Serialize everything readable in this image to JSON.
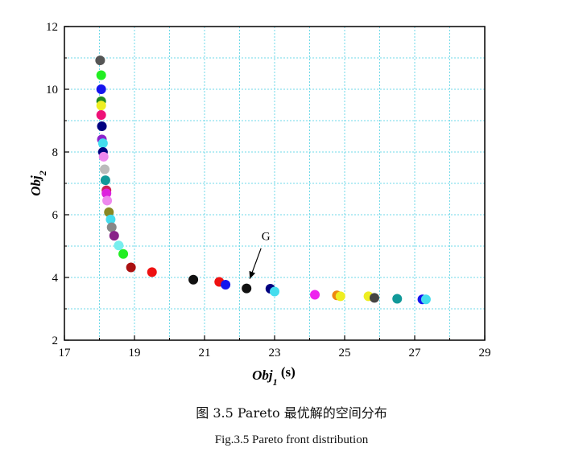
{
  "chart_data": {
    "type": "scatter",
    "xlabel_main": "Obj",
    "xlabel_sub": "1",
    "xlabel_unit": " (s)",
    "ylabel_main": "Obj",
    "ylabel_sub": "2",
    "xlim": [
      17,
      29
    ],
    "ylim": [
      2,
      12
    ],
    "xticks": [
      17,
      19,
      21,
      23,
      25,
      27,
      29
    ],
    "yticks": [
      2,
      4,
      6,
      8,
      10,
      12
    ],
    "grid": true,
    "grid_color": "#6fd9e8",
    "annotation": {
      "text": "G",
      "x": 22.2,
      "y": 3.65
    },
    "points": [
      {
        "x": 18.02,
        "y": 10.92,
        "color": "#555555"
      },
      {
        "x": 18.05,
        "y": 10.45,
        "color": "#22ee22"
      },
      {
        "x": 18.05,
        "y": 10.0,
        "color": "#1515ee"
      },
      {
        "x": 18.05,
        "y": 9.62,
        "color": "#228b22"
      },
      {
        "x": 18.05,
        "y": 9.48,
        "color": "#eeee22"
      },
      {
        "x": 18.05,
        "y": 9.18,
        "color": "#ee1177"
      },
      {
        "x": 18.07,
        "y": 8.82,
        "color": "#000080"
      },
      {
        "x": 18.07,
        "y": 8.4,
        "color": "#8b22cc"
      },
      {
        "x": 18.1,
        "y": 8.28,
        "color": "#44ddee"
      },
      {
        "x": 18.1,
        "y": 8.0,
        "color": "#000080"
      },
      {
        "x": 18.12,
        "y": 7.85,
        "color": "#ee88ee"
      },
      {
        "x": 18.15,
        "y": 7.45,
        "color": "#bbbbbb"
      },
      {
        "x": 18.17,
        "y": 7.1,
        "color": "#119999"
      },
      {
        "x": 18.2,
        "y": 6.78,
        "color": "#cc2255"
      },
      {
        "x": 18.2,
        "y": 6.68,
        "color": "#dd22dd"
      },
      {
        "x": 18.22,
        "y": 6.45,
        "color": "#ee88ee"
      },
      {
        "x": 18.27,
        "y": 6.08,
        "color": "#888822"
      },
      {
        "x": 18.32,
        "y": 5.85,
        "color": "#44ddee"
      },
      {
        "x": 18.35,
        "y": 5.6,
        "color": "#888888"
      },
      {
        "x": 18.42,
        "y": 5.33,
        "color": "#882288"
      },
      {
        "x": 18.55,
        "y": 5.02,
        "color": "#77eeee"
      },
      {
        "x": 18.68,
        "y": 4.75,
        "color": "#22ee22"
      },
      {
        "x": 18.9,
        "y": 4.32,
        "color": "#aa1111"
      },
      {
        "x": 19.5,
        "y": 4.17,
        "color": "#ee1111"
      },
      {
        "x": 20.68,
        "y": 3.93,
        "color": "#111111"
      },
      {
        "x": 21.42,
        "y": 3.86,
        "color": "#ee1111"
      },
      {
        "x": 21.6,
        "y": 3.77,
        "color": "#1515ee"
      },
      {
        "x": 22.2,
        "y": 3.65,
        "color": "#111111"
      },
      {
        "x": 22.88,
        "y": 3.64,
        "color": "#000080"
      },
      {
        "x": 23.0,
        "y": 3.55,
        "color": "#44ddee"
      },
      {
        "x": 24.15,
        "y": 3.45,
        "color": "#ee22ee"
      },
      {
        "x": 24.78,
        "y": 3.43,
        "color": "#ee8811"
      },
      {
        "x": 24.88,
        "y": 3.4,
        "color": "#eeee22"
      },
      {
        "x": 25.68,
        "y": 3.4,
        "color": "#eeee22"
      },
      {
        "x": 25.85,
        "y": 3.35,
        "color": "#444444"
      },
      {
        "x": 26.5,
        "y": 3.32,
        "color": "#119999"
      },
      {
        "x": 27.22,
        "y": 3.3,
        "color": "#1515ee"
      },
      {
        "x": 27.32,
        "y": 3.3,
        "color": "#44ddee"
      }
    ]
  },
  "captions": {
    "cn": "图 3.5 Pareto 最优解的空间分布",
    "en": "Fig.3.5 Pareto front distribution"
  }
}
